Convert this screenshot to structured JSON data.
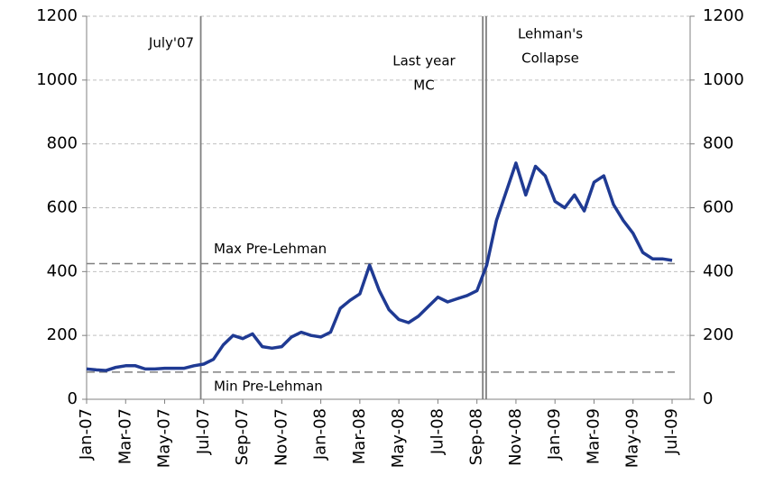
{
  "chart_data": {
    "type": "line",
    "categories": [
      "Jan-07",
      null,
      null,
      null,
      "Mar-07",
      null,
      null,
      null,
      "May-07",
      null,
      null,
      null,
      "Jul-07",
      null,
      null,
      null,
      "Sep-07",
      null,
      null,
      null,
      "Nov-07",
      null,
      null,
      null,
      "Jan-08",
      null,
      null,
      null,
      "Mar-08",
      null,
      null,
      null,
      "May-08",
      null,
      null,
      null,
      "Jul-08",
      null,
      null,
      null,
      "Sep-08",
      null,
      null,
      null,
      "Nov-08",
      null,
      null,
      null,
      "Jan-09",
      null,
      null,
      null,
      "Mar-09",
      null,
      null,
      null,
      "May-09",
      null,
      null,
      null,
      "Jul-09"
    ],
    "values": [
      95,
      92,
      90,
      100,
      105,
      105,
      95,
      95,
      97,
      97,
      97,
      105,
      110,
      125,
      170,
      200,
      190,
      205,
      165,
      160,
      165,
      195,
      210,
      200,
      195,
      210,
      285,
      310,
      330,
      420,
      340,
      280,
      250,
      240,
      260,
      290,
      320,
      305,
      315,
      325,
      340,
      420,
      560,
      650,
      740,
      640,
      730,
      700,
      620,
      600,
      640,
      590,
      680,
      700,
      610,
      560,
      520,
      460,
      440,
      440,
      435
    ],
    "color": "#1f3a93",
    "ylim": [
      0,
      1200
    ],
    "yticks": [
      0,
      200,
      400,
      600,
      800,
      1000,
      1200
    ],
    "y2lim": [
      0,
      1200
    ],
    "y2ticks": [
      0,
      200,
      400,
      600,
      800,
      1000,
      1200
    ],
    "grid": true,
    "vlines": [
      {
        "x": 11.7,
        "label": [
          "July'07"
        ]
      },
      {
        "x": 40.6,
        "label": [
          "Last year",
          "MC"
        ]
      },
      {
        "x": 40.95,
        "label": [
          "Lehman's",
          "Collapse"
        ]
      }
    ],
    "hlines": [
      {
        "y": 425,
        "label": "Max Pre-Lehman"
      },
      {
        "y": 85,
        "label": "Min Pre-Lehman"
      }
    ]
  }
}
